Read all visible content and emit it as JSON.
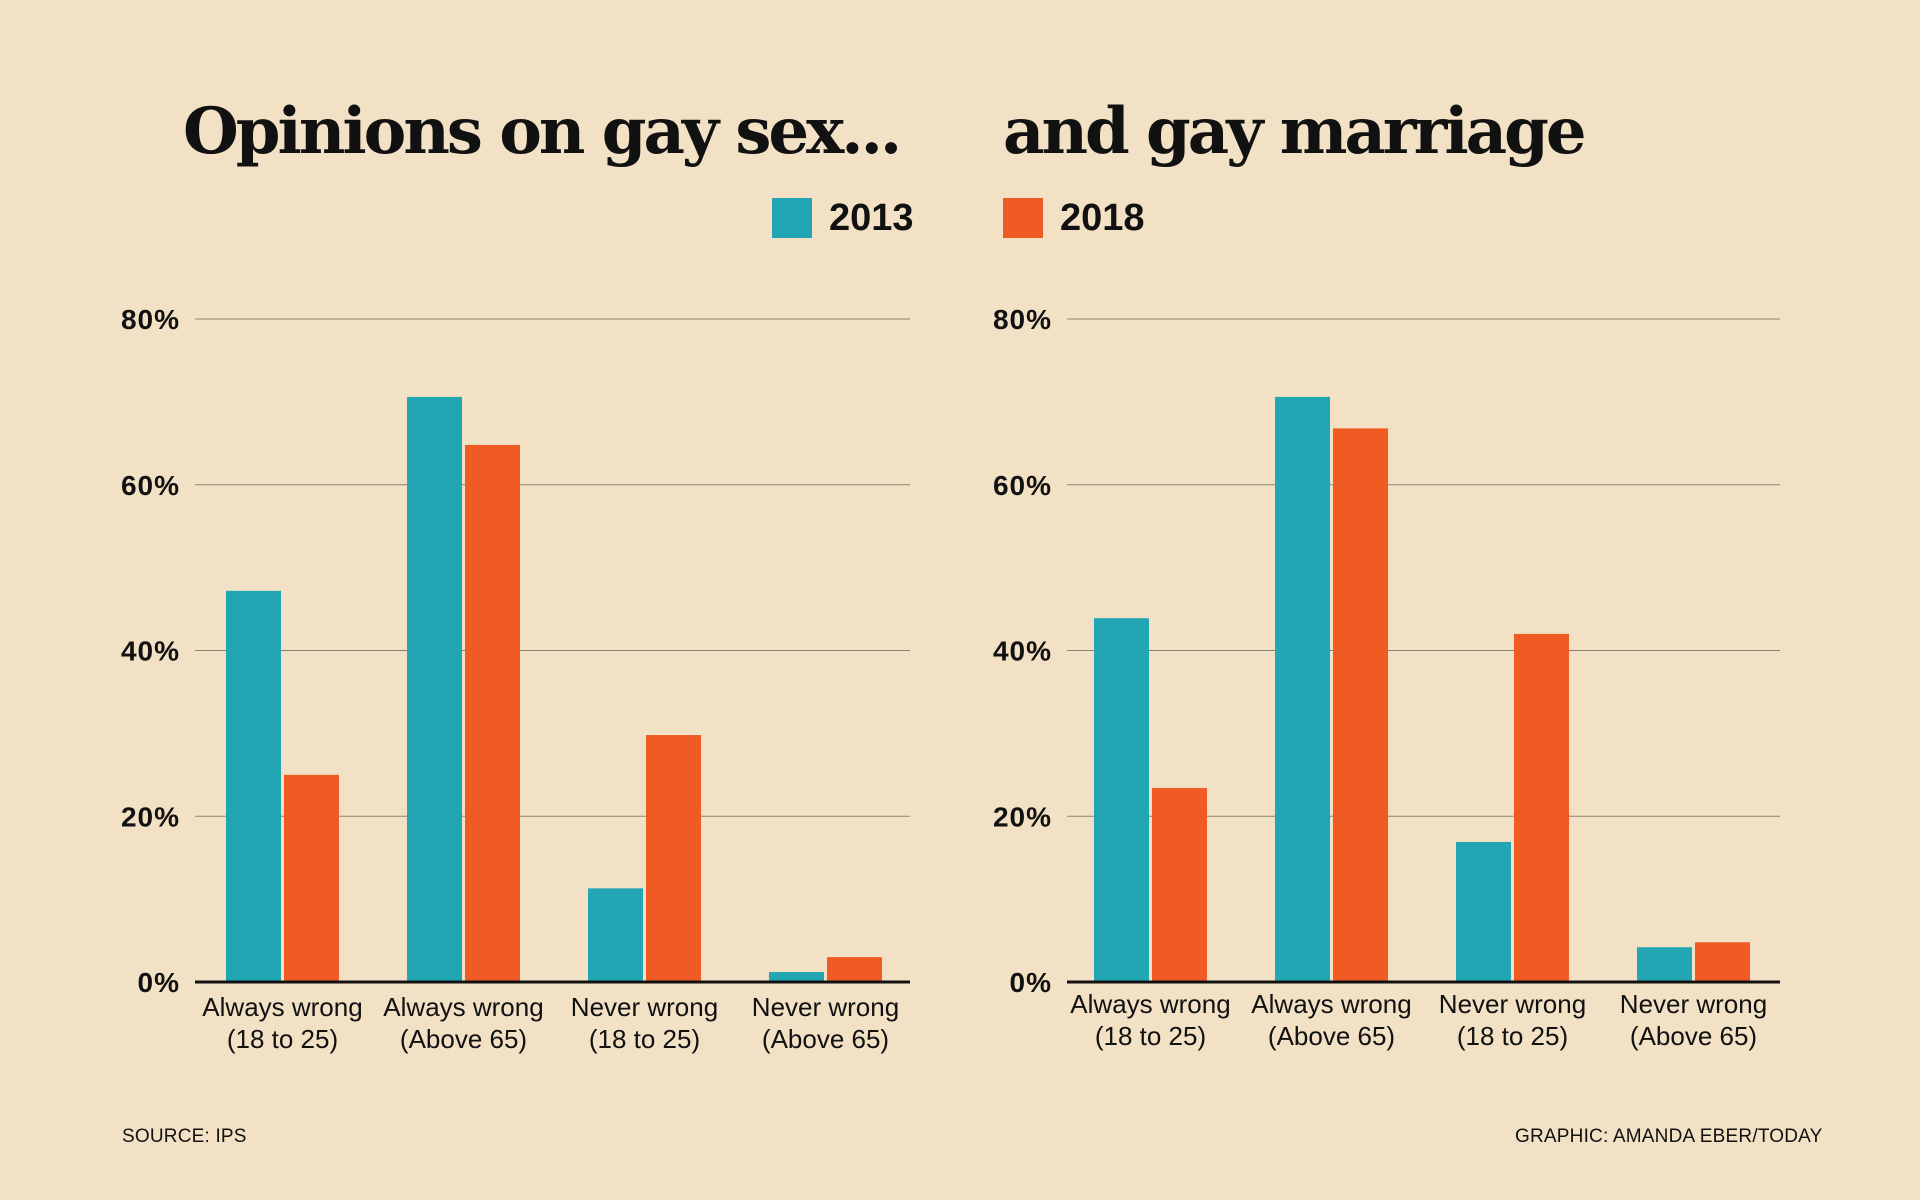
{
  "titles": {
    "left": "Opinions on gay sex...",
    "right": "and gay marriage"
  },
  "legend": [
    {
      "label": "2013",
      "color": "#23a6b3"
    },
    {
      "label": "2018",
      "color": "#ef5b22"
    }
  ],
  "chart_data": [
    {
      "type": "bar",
      "title": "Opinions on gay sex...",
      "categories": [
        [
          "Always wrong",
          "(18 to 25)"
        ],
        [
          "Always wrong",
          "(Above 65)"
        ],
        [
          "Never wrong",
          "(18 to 25)"
        ],
        [
          "Never wrong",
          "(Above 65)"
        ]
      ],
      "series": [
        {
          "name": "2013",
          "color": "#23a6b3",
          "values": [
            47.2,
            70.6,
            11.3,
            1.2
          ]
        },
        {
          "name": "2018",
          "color": "#ef5b22",
          "values": [
            25.0,
            64.8,
            29.8,
            3.0
          ]
        }
      ],
      "yticks": [
        "0%",
        "20%",
        "40%",
        "60%",
        "80%"
      ],
      "ylim": [
        0,
        80
      ],
      "grid": true
    },
    {
      "type": "bar",
      "title": "and gay marriage",
      "categories": [
        [
          "Always wrong",
          "(18 to 25)"
        ],
        [
          "Always wrong",
          "(Above 65)"
        ],
        [
          "Never wrong",
          "(18 to 25)"
        ],
        [
          "Never wrong",
          "(Above 65)"
        ]
      ],
      "series": [
        {
          "name": "2013",
          "color": "#23a6b3",
          "values": [
            43.9,
            70.6,
            16.9,
            4.2
          ]
        },
        {
          "name": "2018",
          "color": "#ef5b22",
          "values": [
            23.4,
            66.8,
            42.0,
            4.8
          ]
        }
      ],
      "yticks": [
        "0%",
        "20%",
        "40%",
        "60%",
        "80%"
      ],
      "ylim": [
        0,
        80
      ],
      "grid": true
    }
  ],
  "footer": {
    "source": "SOURCE: IPS",
    "credit": "GRAPHIC: AMANDA EBER/TODAY"
  }
}
